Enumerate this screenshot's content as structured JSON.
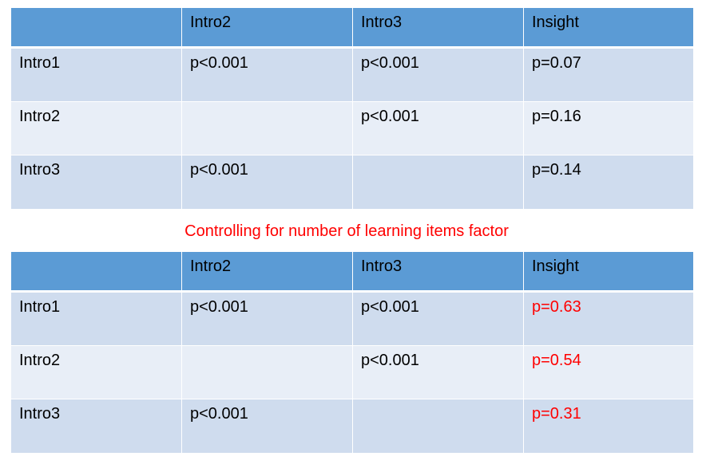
{
  "tables": [
    {
      "header": [
        "",
        "Intro2",
        "Intro3",
        "Insight"
      ],
      "rows": [
        [
          "Intro1",
          "p<0.001",
          "p<0.001",
          "p=0.07"
        ],
        [
          "Intro2",
          "",
          "p<0.001",
          "p=0.16"
        ],
        [
          "Intro3",
          "p<0.001",
          "",
          "p=0.14"
        ]
      ]
    },
    {
      "header": [
        "",
        "Intro2",
        "Intro3",
        "Insight"
      ],
      "rows": [
        [
          "Intro1",
          "p<0.001",
          "p<0.001",
          "p=0.63"
        ],
        [
          "Intro2",
          "",
          "p<0.001",
          "p=0.54"
        ],
        [
          "Intro3",
          "p<0.001",
          "",
          "p=0.31"
        ]
      ]
    }
  ],
  "caption": "Controlling for number of learning items factor",
  "colors": {
    "header_bg": "#5b9bd5",
    "row_odd_bg": "#cfdcee",
    "row_even_bg": "#e8eef7",
    "highlight_text": "#ff0000"
  }
}
